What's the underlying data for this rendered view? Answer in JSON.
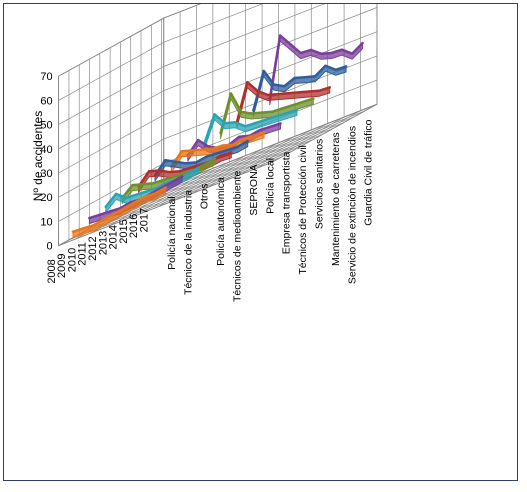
{
  "chart_data": {
    "type": "line",
    "style": "3d-ribbon",
    "ylabel": "Nº de accidentes",
    "ylim": [
      0,
      70
    ],
    "yticks": [
      0,
      10,
      20,
      30,
      40,
      50,
      60,
      70
    ],
    "grid": true,
    "legend": "none",
    "x": [
      "2008",
      "2009",
      "2010",
      "2011",
      "2012",
      "2013",
      "2014",
      "2015",
      "2016",
      "2017"
    ],
    "series": [
      {
        "name": "Policía nacional",
        "color": "#e8771a",
        "values": [
          3,
          2,
          1,
          1,
          1,
          1,
          1,
          1,
          0,
          0
        ]
      },
      {
        "name": "Técnico de la industria",
        "color": "#7a3f9a",
        "values": [
          6,
          5,
          4,
          3,
          3,
          2,
          2,
          2,
          2,
          2
        ]
      },
      {
        "name": "Otros",
        "color": "#2aa3b3",
        "values": [
          8,
          11,
          7,
          6,
          5,
          4,
          4,
          3,
          3,
          3
        ]
      },
      {
        "name": "Policía autonómica",
        "color": "#6e8f2e",
        "values": [
          9,
          12,
          10,
          8,
          7,
          6,
          5,
          4,
          4,
          4
        ]
      },
      {
        "name": "Técnicos de medioambiente",
        "color": "#b02f2d",
        "values": [
          11,
          15,
          13,
          10,
          8,
          7,
          6,
          5,
          5,
          4
        ]
      },
      {
        "name": "SEPRONA",
        "color": "#2f5e9a",
        "values": [
          13,
          17,
          14,
          11,
          9,
          9,
          8,
          7,
          6,
          6
        ]
      },
      {
        "name": "Policía local",
        "color": "#e8771a",
        "values": [
          14,
          18,
          16,
          14,
          12,
          11,
          9,
          9,
          8,
          7
        ]
      },
      {
        "name": "Empresa transportista",
        "color": "#7a3f9a",
        "values": [
          16,
          20,
          15,
          12,
          11,
          12,
          10,
          10,
          9,
          8
        ]
      },
      {
        "name": "Técnicos de Protección civil",
        "color": "#2aa3b3",
        "values": [
          18,
          28,
          22,
          20,
          16,
          15,
          14,
          13,
          12,
          11
        ]
      },
      {
        "name": "Servicios sanitarios",
        "color": "#6e8f2e",
        "values": [
          20,
          34,
          24,
          21,
          19,
          17,
          16,
          15,
          14,
          13
        ]
      },
      {
        "name": "Mantenimiento de carreteras",
        "color": "#b02f2d",
        "values": [
          22,
          36,
          30,
          26,
          24,
          22,
          20,
          18,
          16,
          15
        ]
      },
      {
        "name": "Servicio de extinción de incendios",
        "color": "#2f5e9a",
        "values": [
          24,
          38,
          30,
          27,
          28,
          26,
          24,
          26,
          22,
          21
        ]
      },
      {
        "name": "Guardia Civil de tráfico",
        "color": "#7a3f9a",
        "values": [
          26,
          50,
          44,
          38,
          37,
          33,
          31,
          30,
          26,
          28
        ]
      }
    ]
  }
}
